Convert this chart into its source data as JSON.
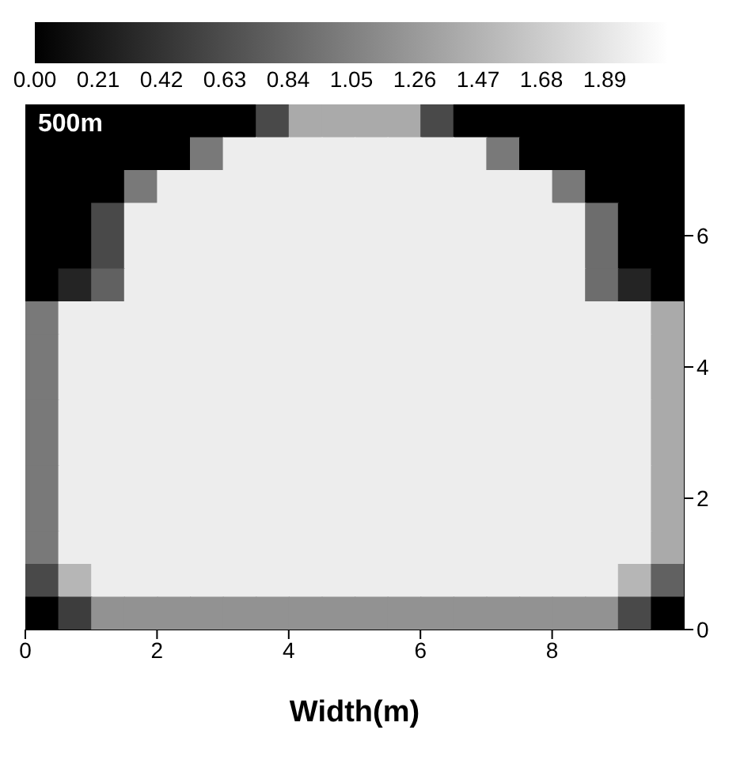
{
  "chart_data": {
    "type": "heatmap",
    "xlabel": "Width(m)",
    "annotations": [
      "500m"
    ],
    "xlim": [
      0,
      10
    ],
    "xticks": [
      0,
      2,
      4,
      6,
      8
    ],
    "ylim": [
      0,
      8
    ],
    "yticks": [
      0,
      2,
      4,
      6
    ],
    "clim": [
      0,
      2.1
    ],
    "cticks": [
      {
        "value": 0,
        "label": "0.00"
      },
      {
        "value": 0.21,
        "label": "0.21"
      },
      {
        "value": 0.42,
        "label": "0.42"
      },
      {
        "value": 0.63,
        "label": "0.63"
      },
      {
        "value": 0.84,
        "label": "0.84"
      },
      {
        "value": 1.05,
        "label": "1.05"
      },
      {
        "value": 1.26,
        "label": "1.26"
      },
      {
        "value": 1.47,
        "label": "1.47"
      },
      {
        "value": 1.68,
        "label": "1.68"
      },
      {
        "value": 1.89,
        "label": "1.89"
      }
    ],
    "cells": [
      [
        0,
        0,
        0,
        0,
        0,
        0,
        0,
        0.6,
        1.4,
        1.4,
        1.4,
        1.4,
        0.6,
        0,
        0,
        0,
        0,
        0,
        0,
        0
      ],
      [
        0,
        0,
        0,
        0,
        0,
        1.0,
        1.95,
        1.95,
        1.95,
        1.95,
        1.95,
        1.95,
        1.95,
        1.95,
        1.0,
        0,
        0,
        0,
        0,
        0
      ],
      [
        0,
        0,
        0,
        1.0,
        1.95,
        1.95,
        1.95,
        1.95,
        1.95,
        1.95,
        1.95,
        1.95,
        1.95,
        1.95,
        1.95,
        1.95,
        1.0,
        0,
        0,
        0
      ],
      [
        0,
        0,
        0.6,
        1.95,
        1.95,
        1.95,
        1.95,
        1.95,
        1.95,
        1.95,
        1.95,
        1.95,
        1.95,
        1.95,
        1.95,
        1.95,
        1.95,
        0.9,
        0,
        0
      ],
      [
        0,
        0,
        0.6,
        1.95,
        1.95,
        1.95,
        1.95,
        1.95,
        1.95,
        1.95,
        1.95,
        1.95,
        1.95,
        1.95,
        1.95,
        1.95,
        1.95,
        0.9,
        0,
        0
      ],
      [
        0,
        0.3,
        0.8,
        1.95,
        1.95,
        1.95,
        1.95,
        1.95,
        1.95,
        1.95,
        1.95,
        1.95,
        1.95,
        1.95,
        1.95,
        1.95,
        1.95,
        0.9,
        0.3,
        0
      ],
      [
        1.0,
        1.95,
        1.95,
        1.95,
        1.95,
        1.95,
        1.95,
        1.95,
        1.95,
        1.95,
        1.95,
        1.95,
        1.95,
        1.95,
        1.95,
        1.95,
        1.95,
        1.95,
        1.95,
        1.4
      ],
      [
        1.0,
        1.95,
        1.95,
        1.95,
        1.95,
        1.95,
        1.95,
        1.95,
        1.95,
        1.95,
        1.95,
        1.95,
        1.95,
        1.95,
        1.95,
        1.95,
        1.95,
        1.95,
        1.95,
        1.4
      ],
      [
        1.0,
        1.95,
        1.95,
        1.95,
        1.95,
        1.95,
        1.95,
        1.95,
        1.95,
        1.95,
        1.95,
        1.95,
        1.95,
        1.95,
        1.95,
        1.95,
        1.95,
        1.95,
        1.95,
        1.4
      ],
      [
        1.0,
        1.95,
        1.95,
        1.95,
        1.95,
        1.95,
        1.95,
        1.95,
        1.95,
        1.95,
        1.95,
        1.95,
        1.95,
        1.95,
        1.95,
        1.95,
        1.95,
        1.95,
        1.95,
        1.4
      ],
      [
        1.0,
        1.95,
        1.95,
        1.95,
        1.95,
        1.95,
        1.95,
        1.95,
        1.95,
        1.95,
        1.95,
        1.95,
        1.95,
        1.95,
        1.95,
        1.95,
        1.95,
        1.95,
        1.95,
        1.4
      ],
      [
        1.0,
        1.95,
        1.95,
        1.95,
        1.95,
        1.95,
        1.95,
        1.95,
        1.95,
        1.95,
        1.95,
        1.95,
        1.95,
        1.95,
        1.95,
        1.95,
        1.95,
        1.95,
        1.95,
        1.4
      ],
      [
        1.0,
        1.95,
        1.95,
        1.95,
        1.95,
        1.95,
        1.95,
        1.95,
        1.95,
        1.95,
        1.95,
        1.95,
        1.95,
        1.95,
        1.95,
        1.95,
        1.95,
        1.95,
        1.95,
        1.4
      ],
      [
        1.0,
        1.95,
        1.95,
        1.95,
        1.95,
        1.95,
        1.95,
        1.95,
        1.95,
        1.95,
        1.95,
        1.95,
        1.95,
        1.95,
        1.95,
        1.95,
        1.95,
        1.95,
        1.95,
        1.4
      ],
      [
        0.6,
        1.5,
        1.95,
        1.95,
        1.95,
        1.95,
        1.95,
        1.95,
        1.95,
        1.95,
        1.95,
        1.95,
        1.95,
        1.95,
        1.95,
        1.95,
        1.95,
        1.95,
        1.5,
        0.8
      ],
      [
        0,
        0.5,
        1.2,
        1.2,
        1.2,
        1.2,
        1.2,
        1.2,
        1.2,
        1.2,
        1.2,
        1.2,
        1.2,
        1.2,
        1.2,
        1.2,
        1.2,
        1.2,
        0.6,
        0
      ]
    ]
  }
}
